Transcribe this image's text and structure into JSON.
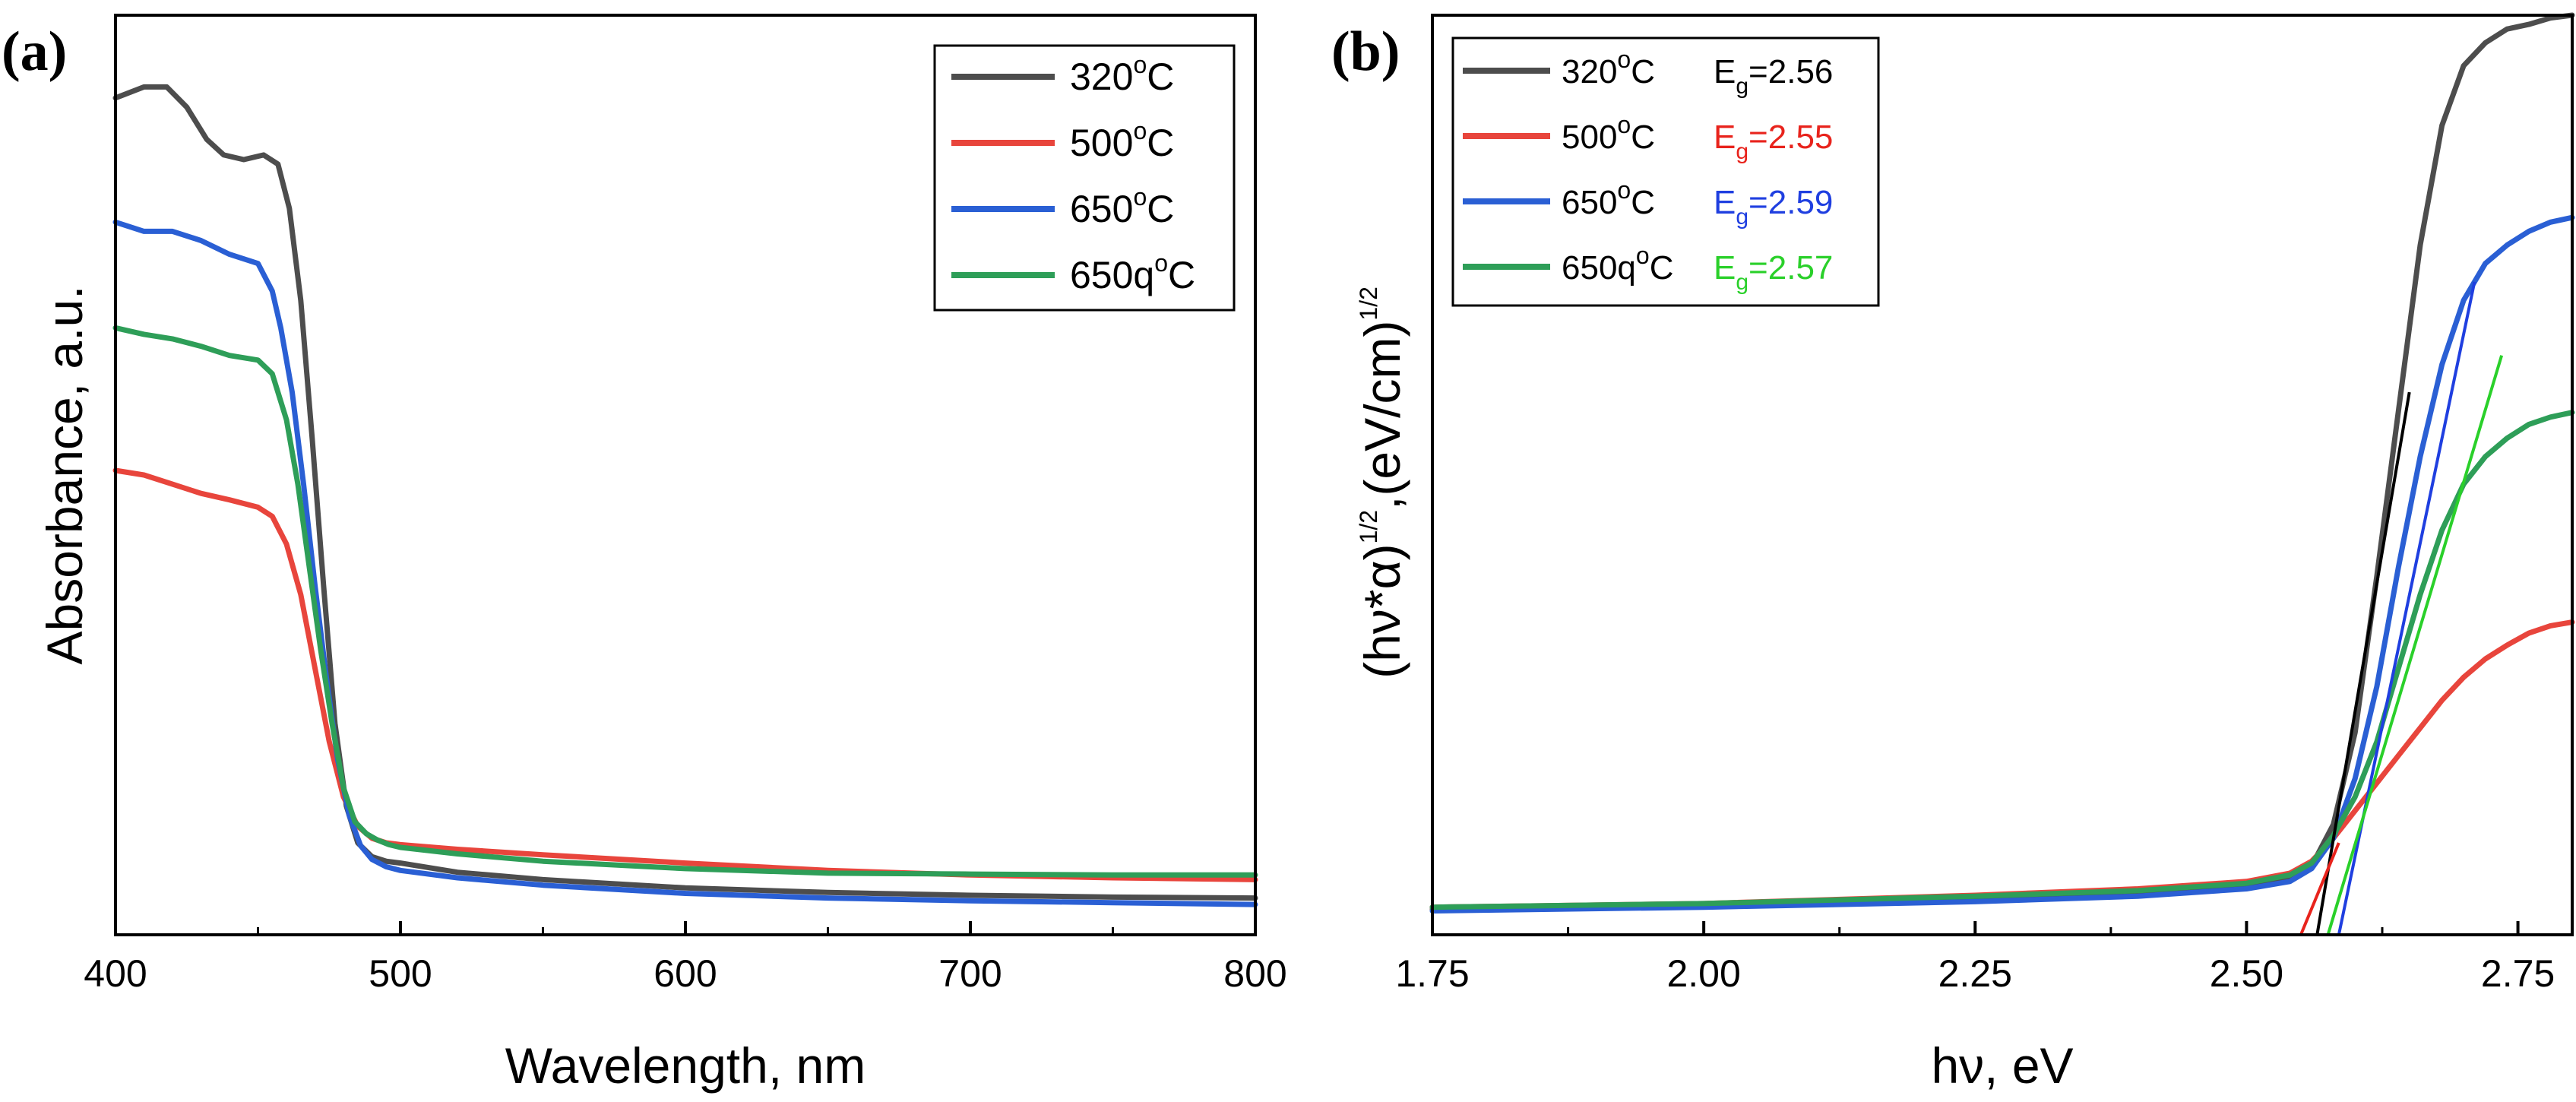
{
  "chart_data": [
    {
      "type": "line",
      "panel_label": "(a)",
      "xlabel": "Wavelength, nm",
      "ylabel": "Absorbance, a.u.",
      "xlim": [
        400,
        800
      ],
      "ylim": [
        0,
        1
      ],
      "xticks": [
        "400",
        "500",
        "600",
        "700",
        "800"
      ],
      "y_tick_labels": false,
      "legend_position": "top-right",
      "series": [
        {
          "name": "320",
          "name_sup": "o",
          "name_suffix": "C",
          "color": "#4d4d4d",
          "x": [
            400,
            410,
            418,
            425,
            432,
            438,
            445,
            452,
            457,
            461,
            465,
            469,
            473,
            477,
            481,
            485,
            490,
            495,
            500,
            520,
            550,
            600,
            650,
            700,
            750,
            800
          ],
          "y": [
            0.91,
            0.922,
            0.922,
            0.9,
            0.865,
            0.848,
            0.843,
            0.848,
            0.838,
            0.79,
            0.69,
            0.54,
            0.38,
            0.23,
            0.14,
            0.1,
            0.085,
            0.08,
            0.078,
            0.068,
            0.06,
            0.051,
            0.046,
            0.043,
            0.041,
            0.04
          ]
        },
        {
          "name": "500",
          "name_sup": "o",
          "name_suffix": "C",
          "color": "#e8453c",
          "x": [
            400,
            410,
            420,
            430,
            440,
            450,
            455,
            460,
            465,
            470,
            475,
            480,
            485,
            490,
            495,
            500,
            520,
            550,
            600,
            650,
            700,
            750,
            800
          ],
          "y": [
            0.505,
            0.5,
            0.49,
            0.48,
            0.473,
            0.465,
            0.455,
            0.425,
            0.37,
            0.29,
            0.21,
            0.15,
            0.118,
            0.105,
            0.1,
            0.098,
            0.093,
            0.087,
            0.078,
            0.07,
            0.065,
            0.062,
            0.06
          ]
        },
        {
          "name": "650",
          "name_sup": "o",
          "name_suffix": "C",
          "color": "#2a5fd4",
          "x": [
            400,
            410,
            420,
            430,
            440,
            450,
            455,
            458,
            462,
            466,
            470,
            474,
            478,
            482,
            486,
            490,
            495,
            500,
            520,
            550,
            600,
            650,
            700,
            750,
            800
          ],
          "y": [
            0.775,
            0.765,
            0.765,
            0.755,
            0.74,
            0.73,
            0.7,
            0.66,
            0.59,
            0.49,
            0.38,
            0.28,
            0.19,
            0.13,
            0.097,
            0.082,
            0.074,
            0.07,
            0.062,
            0.054,
            0.045,
            0.04,
            0.037,
            0.035,
            0.033
          ]
        },
        {
          "name": "650q",
          "name_sup": "o",
          "name_suffix": "C",
          "color": "#2e9e58",
          "x": [
            400,
            410,
            420,
            430,
            440,
            450,
            455,
            460,
            464,
            468,
            472,
            476,
            480,
            484,
            488,
            492,
            496,
            500,
            520,
            550,
            600,
            650,
            700,
            750,
            800
          ],
          "y": [
            0.66,
            0.653,
            0.648,
            0.64,
            0.63,
            0.625,
            0.61,
            0.56,
            0.49,
            0.4,
            0.31,
            0.23,
            0.16,
            0.123,
            0.11,
            0.103,
            0.098,
            0.095,
            0.088,
            0.08,
            0.072,
            0.067,
            0.066,
            0.065,
            0.065
          ]
        }
      ]
    },
    {
      "type": "line",
      "panel_label": "(b)",
      "xlabel": "hν, eV",
      "ylabel_main": "(hν*α)",
      "ylabel_sup1": "1/2",
      "ylabel_mid": ",(eV/cm)",
      "ylabel_sup2": "1/2",
      "xlim": [
        1.75,
        2.8
      ],
      "ylim": [
        0,
        1
      ],
      "xticks": [
        "1.75",
        "2.00",
        "2.25",
        "2.50",
        "2.75"
      ],
      "y_tick_labels": false,
      "legend_position": "top-left",
      "series": [
        {
          "name": "320",
          "name_sup": "o",
          "name_suffix": "C",
          "color": "#4d4d4d",
          "eg_label": "E",
          "eg_sub": "g",
          "eg_value": "=2.56",
          "eg_color": "#000000",
          "x": [
            1.75,
            2.0,
            2.25,
            2.4,
            2.5,
            2.54,
            2.56,
            2.58,
            2.6,
            2.62,
            2.64,
            2.66,
            2.68,
            2.7,
            2.72,
            2.74,
            2.76,
            2.78,
            2.8
          ],
          "y": [
            0.028,
            0.032,
            0.04,
            0.046,
            0.052,
            0.06,
            0.075,
            0.12,
            0.22,
            0.39,
            0.57,
            0.75,
            0.88,
            0.945,
            0.97,
            0.985,
            0.99,
            0.997,
            1.0
          ]
        },
        {
          "name": "500",
          "name_sup": "o",
          "name_suffix": "C",
          "color": "#e8453c",
          "eg_label": "E",
          "eg_sub": "g",
          "eg_value": "=2.55",
          "eg_color": "#e8231c",
          "x": [
            1.75,
            2.0,
            2.25,
            2.4,
            2.5,
            2.54,
            2.56,
            2.58,
            2.6,
            2.62,
            2.64,
            2.66,
            2.68,
            2.7,
            2.72,
            2.74,
            2.76,
            2.78,
            2.8
          ],
          "y": [
            0.03,
            0.034,
            0.043,
            0.05,
            0.058,
            0.067,
            0.08,
            0.105,
            0.135,
            0.165,
            0.195,
            0.225,
            0.255,
            0.28,
            0.3,
            0.315,
            0.328,
            0.336,
            0.34
          ]
        },
        {
          "name": "650",
          "name_sup": "o",
          "name_suffix": "C",
          "color": "#2a5fd4",
          "eg_label": "E",
          "eg_sub": "g",
          "eg_value": "=2.59",
          "eg_color": "#1f3fe0",
          "x": [
            1.75,
            2.0,
            2.25,
            2.4,
            2.5,
            2.54,
            2.56,
            2.58,
            2.6,
            2.62,
            2.64,
            2.66,
            2.68,
            2.7,
            2.72,
            2.74,
            2.76,
            2.78,
            2.8
          ],
          "y": [
            0.026,
            0.03,
            0.036,
            0.042,
            0.05,
            0.058,
            0.072,
            0.105,
            0.17,
            0.27,
            0.4,
            0.52,
            0.62,
            0.69,
            0.73,
            0.75,
            0.765,
            0.775,
            0.78
          ]
        },
        {
          "name": "650q",
          "name_sup": "o",
          "name_suffix": "C",
          "color": "#2e9e58",
          "eg_label": "E",
          "eg_sub": "g",
          "eg_value": "=2.57",
          "eg_color": "#2ad02a",
          "x": [
            1.75,
            2.0,
            2.25,
            2.4,
            2.5,
            2.54,
            2.56,
            2.58,
            2.6,
            2.62,
            2.64,
            2.66,
            2.68,
            2.7,
            2.72,
            2.74,
            2.76,
            2.78,
            2.8
          ],
          "y": [
            0.03,
            0.034,
            0.042,
            0.048,
            0.056,
            0.065,
            0.078,
            0.108,
            0.15,
            0.21,
            0.29,
            0.37,
            0.44,
            0.49,
            0.52,
            0.54,
            0.555,
            0.563,
            0.568
          ]
        }
      ],
      "fit_lines": [
        {
          "color": "#000000",
          "x": [
            2.565,
            2.65
          ],
          "y": [
            0.0,
            0.59
          ]
        },
        {
          "color": "#e8231c",
          "x": [
            2.55,
            2.585
          ],
          "y": [
            0.0,
            0.1
          ]
        },
        {
          "color": "#1f3fe0",
          "x": [
            2.585,
            2.71
          ],
          "y": [
            0.0,
            0.71
          ]
        },
        {
          "color": "#2ad02a",
          "x": [
            2.575,
            2.735
          ],
          "y": [
            0.0,
            0.63
          ]
        }
      ]
    }
  ]
}
